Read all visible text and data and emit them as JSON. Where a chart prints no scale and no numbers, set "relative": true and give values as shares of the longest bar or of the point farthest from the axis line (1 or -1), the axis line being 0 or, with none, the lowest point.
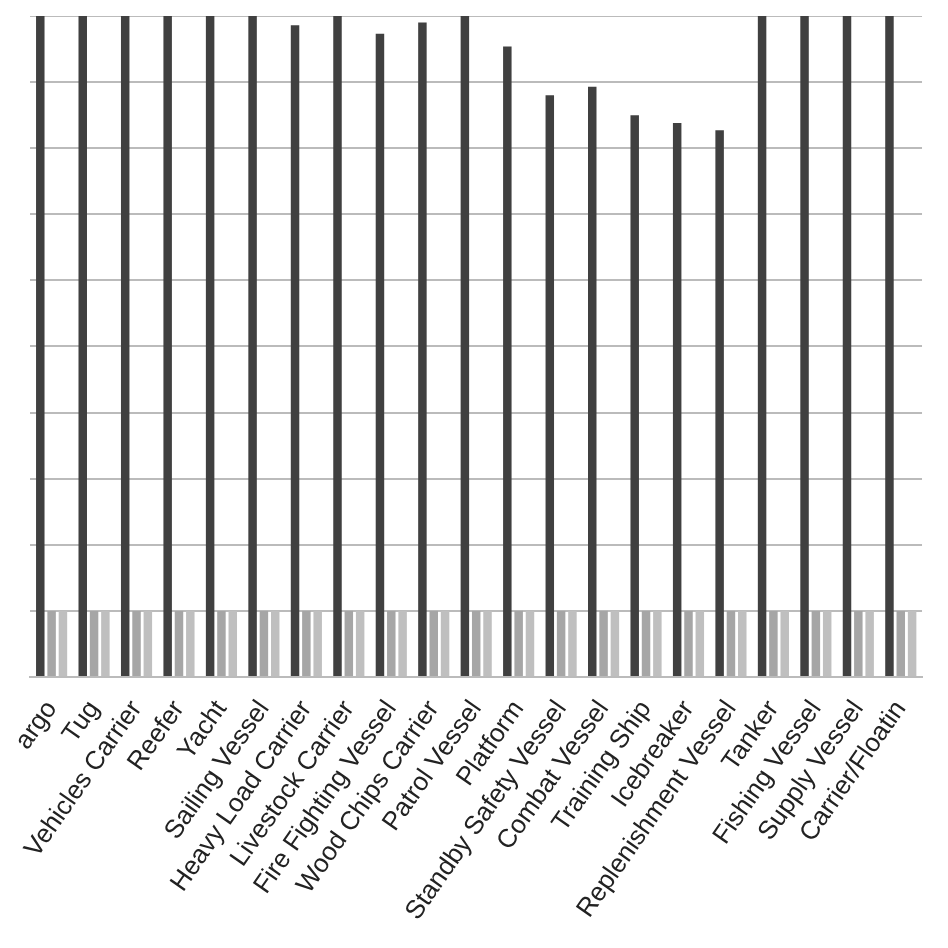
{
  "chart_data": {
    "type": "bar",
    "relative": true,
    "grid": "y",
    "categories": [
      "argo",
      "Tug",
      "Vehicles Carrier",
      "Reefer",
      "Yacht",
      "Sailing Vessel",
      "Heavy Load Carrier",
      "Livestock Carrier",
      "Fire Fighting Vessel",
      "Wood Chips Carrier",
      "Patrol Vessel",
      "Platform",
      "Standby Safety Vessel",
      "Combat Vessel",
      "Training Ship",
      "Icebreaker",
      "Replenishment Vessel",
      "Tanker",
      "Fishing Vessel",
      "Supply Vessel",
      "Carrier/Floatin"
    ],
    "series": [
      {
        "color": "#404040",
        "values": [
          1,
          1,
          1,
          1,
          1,
          1,
          0.986,
          1,
          0.973,
          0.99,
          1,
          0.954,
          0.88,
          0.893,
          0.85,
          0.838,
          0.827,
          1,
          1,
          1,
          1
        ]
      },
      {
        "color": "#a6a6a6",
        "values": [
          0.1,
          0.1,
          0.1,
          0.1,
          0.1,
          0.1,
          0.1,
          0.1,
          0.1,
          0.1,
          0.1,
          0.1,
          0.1,
          0.1,
          0.1,
          0.1,
          0.1,
          0.1,
          0.1,
          0.1,
          0.1
        ]
      },
      {
        "color": "#bfbfbf",
        "values": [
          0.1,
          0.1,
          0.1,
          0.1,
          0.1,
          0.1,
          0.1,
          0.1,
          0.1,
          0.1,
          0.1,
          0.1,
          0.1,
          0.1,
          0.1,
          0.1,
          0.1,
          0.1,
          0.1,
          0.1,
          0.1
        ]
      }
    ]
  }
}
